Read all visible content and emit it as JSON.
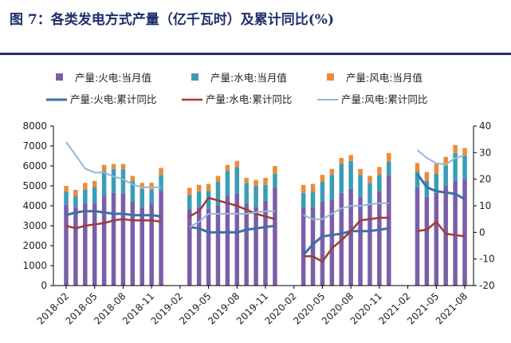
{
  "title": "图 7：各类发电方式产量（亿千瓦时）及累计同比(%)",
  "colors": {
    "fire_bar": "#7b5ea7",
    "water_bar": "#3a9db5",
    "wind_bar": "#ec8b3a",
    "fire_line": "#3e6ea8",
    "water_line": "#a23a35",
    "wind_line": "#98b4dc",
    "rule": "#1f2f6e"
  },
  "chart_data": {
    "type": "bar",
    "stacked": true,
    "categories": [
      "2018-02",
      "2018-03",
      "2018-04",
      "2018-05",
      "2018-06",
      "2018-07",
      "2018-08",
      "2018-09",
      "2018-10",
      "2018-11",
      "2018-12",
      "2019-01",
      "2019-02",
      "2019-03",
      "2019-04",
      "2019-05",
      "2019-06",
      "2019-07",
      "2019-08",
      "2019-09",
      "2019-10",
      "2019-11",
      "2019-12",
      "2020-01",
      "2020-02",
      "2020-03",
      "2020-04",
      "2020-05",
      "2020-06",
      "2020-07",
      "2020-08",
      "2020-09",
      "2020-10",
      "2020-11",
      "2020-12",
      "2021-01",
      "2021-02",
      "2021-03",
      "2021-04",
      "2021-05",
      "2021-06",
      "2021-07",
      "2021-08"
    ],
    "tick_labels": [
      "2018-02",
      "2018-05",
      "2018-08",
      "2018-11",
      "2019-02",
      "2019-05",
      "2019-08",
      "2019-11",
      "2020-02",
      "2020-05",
      "2020-08",
      "2020-11",
      "2021-02",
      "2021-05",
      "2021-08"
    ],
    "bar_series": [
      {
        "name": "产量:火电:当月值",
        "values": [
          4050,
          3950,
          4100,
          4150,
          4500,
          4650,
          4600,
          4200,
          3950,
          4100,
          4750,
          null,
          null,
          3800,
          3950,
          3850,
          4000,
          4500,
          4600,
          4150,
          3950,
          4250,
          4900,
          null,
          null,
          3900,
          3950,
          4200,
          4300,
          4650,
          4850,
          4450,
          4150,
          4750,
          5550,
          null,
          null,
          4900,
          4450,
          4650,
          5000,
          5250,
          5300
        ]
      },
      {
        "name": "产量:水电:当月值",
        "values": [
          650,
          550,
          700,
          800,
          1250,
          1200,
          1250,
          1050,
          900,
          700,
          800,
          null,
          null,
          750,
          750,
          900,
          1200,
          1250,
          1350,
          1000,
          1050,
          800,
          700,
          null,
          null,
          750,
          750,
          1000,
          1250,
          1450,
          1400,
          1100,
          1000,
          800,
          650,
          null,
          null,
          800,
          800,
          950,
          1000,
          1400,
          1200
        ]
      },
      {
        "name": "产量:风电:当月值",
        "values": [
          300,
          300,
          350,
          300,
          300,
          250,
          250,
          250,
          300,
          350,
          350,
          null,
          null,
          350,
          350,
          350,
          300,
          300,
          300,
          250,
          300,
          350,
          400,
          null,
          null,
          400,
          400,
          350,
          300,
          300,
          300,
          300,
          350,
          400,
          450,
          null,
          null,
          450,
          450,
          500,
          450,
          400,
          400
        ]
      }
    ],
    "line_series": [
      {
        "name": "产量:火电:累计同比",
        "values": [
          6.5,
          7.5,
          8,
          8,
          7.5,
          7,
          7,
          6.5,
          6.5,
          6.5,
          6,
          null,
          null,
          2,
          1.5,
          0,
          0,
          0,
          0,
          1,
          1.5,
          2,
          2.5,
          null,
          null,
          -8.5,
          -4.5,
          -1.5,
          -1,
          -0.5,
          0.5,
          0.5,
          0.5,
          1,
          1.5,
          null,
          null,
          22,
          17,
          15.5,
          15,
          14.5,
          12.5
        ]
      },
      {
        "name": "产量:水电:累计同比",
        "values": [
          2.5,
          1.5,
          2.5,
          3,
          3.5,
          4.5,
          5,
          4.5,
          4.5,
          4.5,
          4,
          null,
          null,
          6,
          8,
          13,
          12,
          11,
          10,
          8.5,
          7,
          6,
          5,
          null,
          null,
          -9,
          -9,
          -11,
          -6,
          -3,
          0.5,
          4.5,
          5,
          5.5,
          5.5,
          null,
          null,
          0.5,
          1,
          4,
          -0.5,
          -1,
          -1.5
        ]
      },
      {
        "name": "产量:风电:累计同比",
        "values": [
          34,
          29,
          24,
          22.5,
          22.5,
          21,
          20,
          18,
          17,
          17,
          17,
          null,
          null,
          2,
          4,
          7,
          7,
          7,
          7,
          7,
          7.5,
          8,
          8,
          null,
          null,
          6.5,
          5,
          5,
          7,
          9,
          10,
          10,
          10.5,
          11,
          11,
          null,
          null,
          31,
          28,
          26,
          25.5,
          28,
          29
        ]
      }
    ],
    "left_axis": {
      "ylim": [
        0,
        8000
      ],
      "ticks": [
        "0",
        "1000",
        "2000",
        "3000",
        "4000",
        "5000",
        "6000",
        "7000",
        "8000"
      ]
    },
    "right_axis": {
      "ylim": [
        -20,
        40
      ],
      "ticks": [
        "-20",
        "-10",
        "0",
        "10",
        "20",
        "30",
        "40"
      ]
    },
    "legend": "top"
  }
}
